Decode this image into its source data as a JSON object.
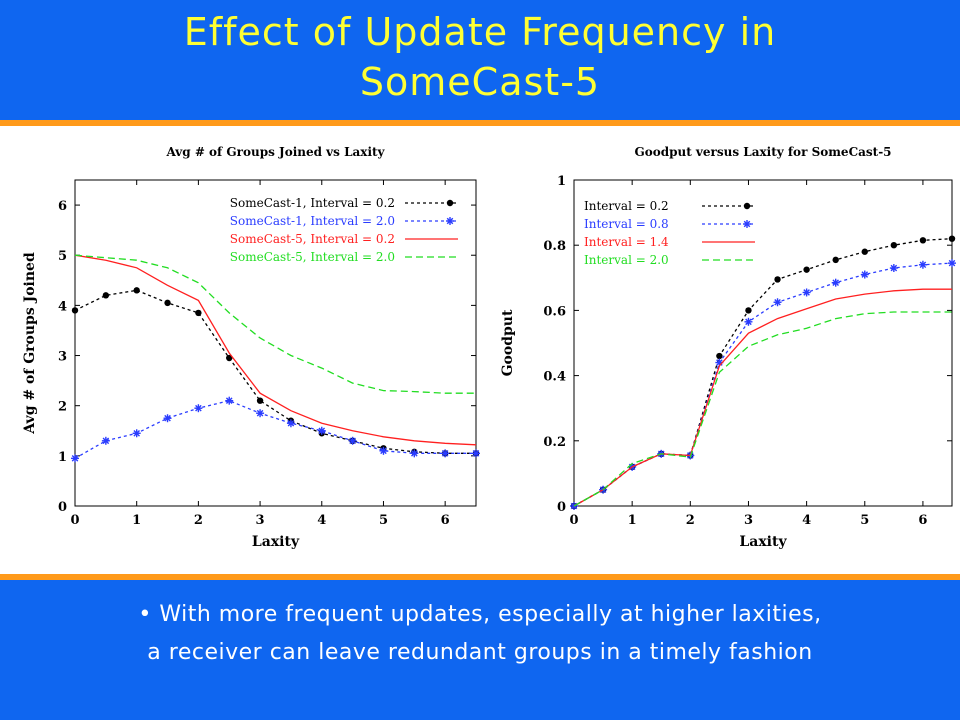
{
  "slide": {
    "title_line1": "Effect of Update Frequency in",
    "title_line2": "SomeCast-5",
    "caption_line1": "• With more frequent updates, especially at higher laxities,",
    "caption_line2": "a receiver can leave redundant groups in a timely fashion"
  },
  "colors": {
    "header_bg": "#0f66f0",
    "title": "#ffff33",
    "rule": "#ff9a1a",
    "caption": "#ffffff"
  },
  "chart_data": [
    {
      "type": "line",
      "title": "Avg # of Groups Joined vs Laxity",
      "xlabel": "Laxity",
      "ylabel": "Avg # of Groups Joined",
      "xlim": [
        0,
        6.5
      ],
      "ylim": [
        0,
        6.5
      ],
      "xticks": [
        "0",
        "1",
        "2",
        "3",
        "4",
        "5",
        "6"
      ],
      "yticks": [
        "0",
        "1",
        "2",
        "3",
        "4",
        "5",
        "6"
      ],
      "legend_position": "top-right",
      "x": [
        0,
        0.5,
        1,
        1.5,
        2,
        2.5,
        3,
        3.5,
        4,
        4.5,
        5,
        5.5,
        6,
        6.5
      ],
      "series": [
        {
          "name": "SomeCast-1, Interval = 0.2",
          "color": "#000000",
          "dash": "3,3",
          "marker": "dot",
          "values": [
            3.9,
            4.2,
            4.3,
            4.05,
            3.85,
            2.95,
            2.1,
            1.7,
            1.45,
            1.3,
            1.15,
            1.08,
            1.05,
            1.05
          ]
        },
        {
          "name": "SomeCast-1, Interval = 2.0",
          "color": "#2a3cff",
          "dash": "3,3",
          "marker": "star",
          "values": [
            0.95,
            1.3,
            1.45,
            1.75,
            1.95,
            2.1,
            1.85,
            1.65,
            1.5,
            1.3,
            1.1,
            1.05,
            1.05,
            1.05
          ]
        },
        {
          "name": "SomeCast-5, Interval = 0.2",
          "color": "#ff2020",
          "dash": "",
          "marker": "none",
          "values": [
            5.0,
            4.9,
            4.75,
            4.4,
            4.1,
            3.05,
            2.25,
            1.9,
            1.65,
            1.5,
            1.38,
            1.3,
            1.25,
            1.22
          ]
        },
        {
          "name": "SomeCast-5, Interval = 2.0",
          "color": "#22dd22",
          "dash": "7,4",
          "marker": "none",
          "values": [
            5.0,
            4.95,
            4.9,
            4.75,
            4.45,
            3.85,
            3.35,
            3.0,
            2.75,
            2.45,
            2.3,
            2.28,
            2.25,
            2.25
          ]
        }
      ]
    },
    {
      "type": "line",
      "title": "Goodput versus Laxity for SomeCast-5",
      "xlabel": "Laxity",
      "ylabel": "Goodput",
      "xlim": [
        0,
        6.5
      ],
      "ylim": [
        0,
        1
      ],
      "xticks": [
        "0",
        "1",
        "2",
        "3",
        "4",
        "5",
        "6"
      ],
      "yticks": [
        "0",
        "0.2",
        "0.4",
        "0.6",
        "0.8",
        "1"
      ],
      "legend_position": "top-left",
      "x": [
        0,
        0.5,
        1,
        1.5,
        2,
        2.5,
        3,
        3.5,
        4,
        4.5,
        5,
        5.5,
        6,
        6.5
      ],
      "series": [
        {
          "name": "Interval = 0.2",
          "color": "#000000",
          "dash": "3,3",
          "marker": "dot",
          "values": [
            0.0,
            0.05,
            0.12,
            0.16,
            0.155,
            0.46,
            0.6,
            0.695,
            0.725,
            0.755,
            0.78,
            0.8,
            0.815,
            0.82
          ]
        },
        {
          "name": "Interval = 0.8",
          "color": "#2a3cff",
          "dash": "3,3",
          "marker": "star",
          "values": [
            0.0,
            0.05,
            0.12,
            0.16,
            0.155,
            0.44,
            0.565,
            0.625,
            0.655,
            0.685,
            0.71,
            0.73,
            0.74,
            0.745
          ]
        },
        {
          "name": "Interval = 1.4",
          "color": "#ff2020",
          "dash": "",
          "marker": "none",
          "values": [
            0.0,
            0.05,
            0.12,
            0.16,
            0.155,
            0.43,
            0.53,
            0.575,
            0.605,
            0.635,
            0.65,
            0.66,
            0.665,
            0.665
          ]
        },
        {
          "name": "Interval = 2.0",
          "color": "#22dd22",
          "dash": "7,4",
          "marker": "none",
          "values": [
            0.0,
            0.05,
            0.13,
            0.16,
            0.15,
            0.41,
            0.49,
            0.525,
            0.545,
            0.575,
            0.59,
            0.595,
            0.595,
            0.595
          ]
        }
      ]
    }
  ]
}
